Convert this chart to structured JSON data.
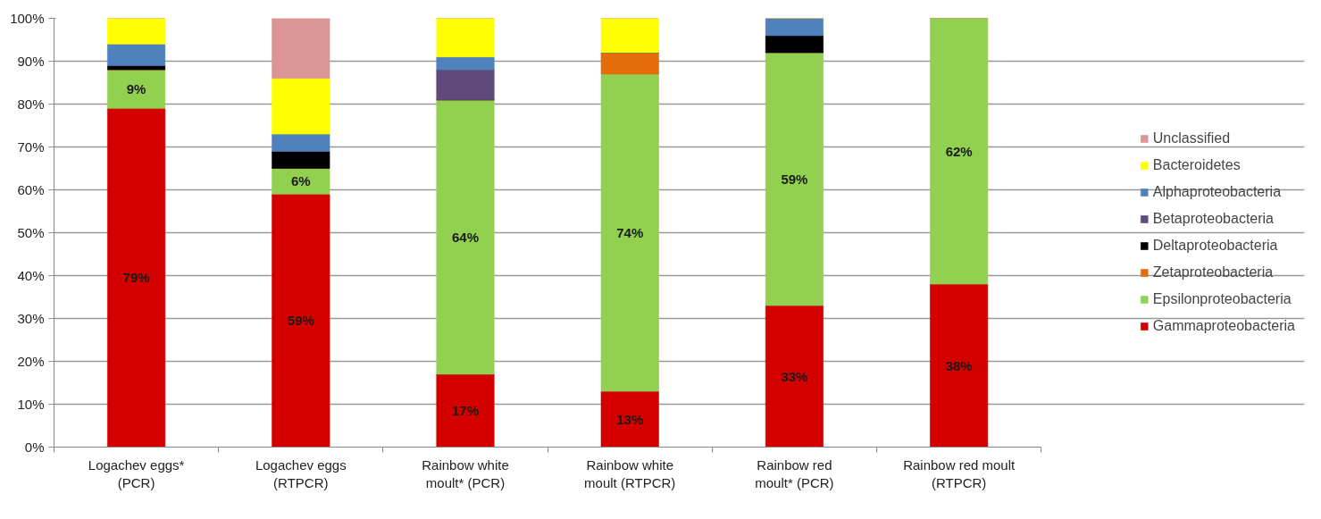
{
  "chart_data": {
    "type": "bar",
    "stacked": true,
    "categories": [
      "Logachev eggs* (PCR)",
      "Logachev eggs (RTPCR)",
      "Rainbow white moult* (PCR)",
      "Rainbow white moult (RTPCR)",
      "Rainbow red moult* (PCR)",
      "Rainbow red moult (RTPCR)"
    ],
    "series": [
      {
        "name": "Gammaproteobacteria",
        "color": "#d40000",
        "values": [
          79,
          59,
          17,
          13,
          33,
          38
        ],
        "value_labels": [
          "79%",
          "59%",
          "17%",
          "13%",
          "33%",
          "38%"
        ]
      },
      {
        "name": "Epsilonproteobacteria",
        "color": "#92d050",
        "values": [
          9,
          6,
          64,
          74,
          59,
          62
        ],
        "value_labels": [
          "9%",
          "6%",
          "64%",
          "74%",
          "59%",
          "62%"
        ]
      },
      {
        "name": "Zetaproteobacteria",
        "color": "#e46c0a",
        "values": [
          0,
          0,
          0,
          5,
          0,
          0
        ]
      },
      {
        "name": "Deltaproteobacteria",
        "color": "#000000",
        "values": [
          1,
          4,
          0,
          0,
          4,
          0
        ]
      },
      {
        "name": "Betaproteobacteria",
        "color": "#604a7b",
        "values": [
          0,
          0,
          7,
          0,
          0,
          0
        ]
      },
      {
        "name": "Alphaproteobacteria",
        "color": "#4f81bd",
        "values": [
          5,
          4,
          3,
          0,
          4,
          0
        ]
      },
      {
        "name": "Bacteroidetes",
        "color": "#ffff00",
        "values": [
          6,
          13,
          9,
          8,
          0,
          0
        ]
      },
      {
        "name": "Unclassified",
        "color": "#d99694",
        "values": [
          0,
          14,
          0,
          0,
          0,
          0
        ]
      }
    ],
    "ylim": [
      0,
      100
    ],
    "yticks": [
      {
        "value": 0,
        "label": "0%"
      },
      {
        "value": 10,
        "label": "10%"
      },
      {
        "value": 20,
        "label": "20%"
      },
      {
        "value": 30,
        "label": "30%"
      },
      {
        "value": 40,
        "label": "40%"
      },
      {
        "value": 50,
        "label": "50%"
      },
      {
        "value": 60,
        "label": "60%"
      },
      {
        "value": 70,
        "label": "70%"
      },
      {
        "value": 80,
        "label": "80%"
      },
      {
        "value": 90,
        "label": "90%"
      },
      {
        "value": 100,
        "label": "100%"
      }
    ],
    "grid": "y",
    "legend": "right"
  }
}
